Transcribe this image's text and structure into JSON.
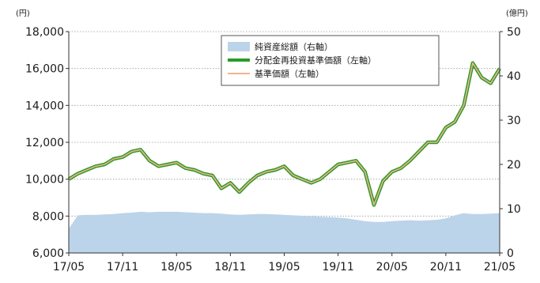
{
  "chart_data": {
    "type": "line",
    "title": "",
    "left_axis": {
      "unit": "(円)",
      "ylim": [
        6000,
        18000
      ],
      "ticks": [
        6000,
        8000,
        10000,
        12000,
        14000,
        16000,
        18000
      ],
      "tick_labels": [
        "6,000",
        "8,000",
        "10,000",
        "12,000",
        "14,000",
        "16,000",
        "18,000"
      ]
    },
    "right_axis": {
      "unit": "(億円)",
      "ylim": [
        0,
        50
      ],
      "ticks": [
        0,
        10,
        20,
        30,
        40,
        50
      ],
      "tick_labels": [
        "0",
        "10",
        "20",
        "30",
        "40",
        "50"
      ]
    },
    "x_axis": {
      "tick_labels": [
        "17/05",
        "17/11",
        "18/05",
        "18/11",
        "19/05",
        "19/11",
        "20/05",
        "20/11",
        "21/05"
      ]
    },
    "grid": "horizontal",
    "legend_position": "top-center",
    "series": [
      {
        "name": "純資産総額（右軸）",
        "axis": "right",
        "style": "area",
        "color": "#bcd4ea",
        "x": [
          "17/05",
          "17/06",
          "17/07",
          "17/08",
          "17/09",
          "17/10",
          "17/11",
          "17/12",
          "18/01",
          "18/02",
          "18/03",
          "18/04",
          "18/05",
          "18/06",
          "18/07",
          "18/08",
          "18/09",
          "18/10",
          "18/11",
          "18/12",
          "19/01",
          "19/02",
          "19/03",
          "19/04",
          "19/05",
          "19/06",
          "19/07",
          "19/08",
          "19/09",
          "19/10",
          "19/11",
          "19/12",
          "20/01",
          "20/02",
          "20/03",
          "20/04",
          "20/05",
          "20/06",
          "20/07",
          "20/08",
          "20/09",
          "20/10",
          "20/11",
          "20/12",
          "21/01",
          "21/02",
          "21/03",
          "21/04",
          "21/05"
        ],
        "values": [
          5.5,
          8.5,
          8.6,
          8.6,
          8.7,
          8.8,
          9.0,
          9.1,
          9.3,
          9.2,
          9.3,
          9.3,
          9.3,
          9.2,
          9.1,
          9.0,
          9.0,
          8.9,
          8.7,
          8.6,
          8.7,
          8.8,
          8.8,
          8.7,
          8.6,
          8.5,
          8.4,
          8.3,
          8.2,
          8.1,
          8.0,
          7.8,
          7.5,
          7.2,
          7.0,
          7.0,
          7.2,
          7.3,
          7.4,
          7.3,
          7.4,
          7.5,
          7.8,
          8.5,
          9.0,
          8.8,
          8.8,
          8.9,
          9.0
        ]
      },
      {
        "name": "分配金再投資基準価額（左軸）",
        "axis": "left",
        "style": "line",
        "color": "#2a9a2a",
        "x": [
          "17/05",
          "17/06",
          "17/07",
          "17/08",
          "17/09",
          "17/10",
          "17/11",
          "17/12",
          "18/01",
          "18/02",
          "18/03",
          "18/04",
          "18/05",
          "18/06",
          "18/07",
          "18/08",
          "18/09",
          "18/10",
          "18/11",
          "18/12",
          "19/01",
          "19/02",
          "19/03",
          "19/04",
          "19/05",
          "19/06",
          "19/07",
          "19/08",
          "19/09",
          "19/10",
          "19/11",
          "19/12",
          "20/01",
          "20/02",
          "20/03",
          "20/04",
          "20/05",
          "20/06",
          "20/07",
          "20/08",
          "20/09",
          "20/10",
          "20/11",
          "20/12",
          "21/01",
          "21/02",
          "21/03",
          "21/04",
          "21/05"
        ],
        "values": [
          10000,
          10300,
          10500,
          10700,
          10800,
          11100,
          11200,
          11500,
          11600,
          11000,
          10700,
          10800,
          10900,
          10600,
          10500,
          10300,
          10200,
          9500,
          9800,
          9300,
          9800,
          10200,
          10400,
          10500,
          10700,
          10200,
          10000,
          9800,
          10000,
          10400,
          10800,
          10900,
          11000,
          10400,
          8600,
          9900,
          10400,
          10600,
          11000,
          11500,
          12000,
          12000,
          12800,
          13100,
          14000,
          16300,
          15500,
          15200,
          16000
        ]
      },
      {
        "name": "基準価額（左軸）",
        "axis": "left",
        "style": "line",
        "color": "#f2b489",
        "x": [
          "17/05",
          "17/06",
          "17/07",
          "17/08",
          "17/09",
          "17/10",
          "17/11",
          "17/12",
          "18/01",
          "18/02",
          "18/03",
          "18/04",
          "18/05",
          "18/06",
          "18/07",
          "18/08",
          "18/09",
          "18/10",
          "18/11",
          "18/12",
          "19/01",
          "19/02",
          "19/03",
          "19/04",
          "19/05",
          "19/06",
          "19/07",
          "19/08",
          "19/09",
          "19/10",
          "19/11",
          "19/12",
          "20/01",
          "20/02",
          "20/03",
          "20/04",
          "20/05",
          "20/06",
          "20/07",
          "20/08",
          "20/09",
          "20/10",
          "20/11",
          "20/12",
          "21/01",
          "21/02",
          "21/03",
          "21/04",
          "21/05"
        ],
        "values": [
          10000,
          10300,
          10500,
          10700,
          10800,
          11100,
          11200,
          11500,
          11600,
          11000,
          10700,
          10800,
          10900,
          10600,
          10500,
          10300,
          10200,
          9500,
          9800,
          9300,
          9800,
          10200,
          10400,
          10500,
          10700,
          10200,
          10000,
          9800,
          10000,
          10400,
          10800,
          10900,
          11000,
          10400,
          8600,
          9900,
          10400,
          10600,
          11000,
          11500,
          12000,
          12000,
          12800,
          13100,
          14000,
          16300,
          15500,
          15200,
          16000
        ]
      }
    ]
  }
}
